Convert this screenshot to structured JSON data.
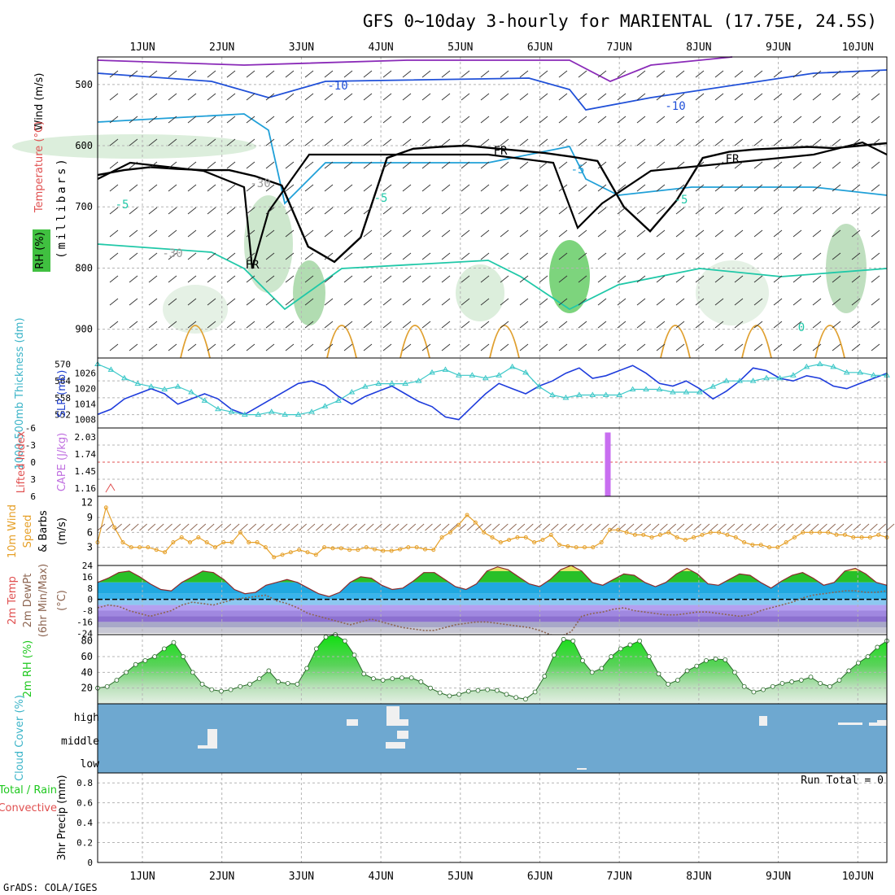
{
  "title": "GFS 0~10day 3-hourly for MARIENTAL (17.75E, 24.5S)",
  "footer": "GrADS: COLA/IGES",
  "date_labels": [
    "1JUN",
    "2JUN",
    "3JUN",
    "4JUN",
    "5JUN",
    "6JUN",
    "7JUN",
    "8JUN",
    "9JUN",
    "10JUN"
  ],
  "colors": {
    "grid": "#b4b4b4",
    "freeze": "#000000",
    "slp": "#1e3cdc",
    "thickness": "#3cc8c8",
    "cape": "#c86ef0",
    "li": "#e63c3c",
    "wind10": "#e6a028",
    "temp": "#8c6450",
    "cloud": "#6ea8d0",
    "rh": "#1ec81e",
    "upper_green": "#3cbe3c"
  },
  "chart_data": [
    {
      "type": "contour",
      "panel": "upper",
      "ylabel_parts": [
        "Wind (m/s)",
        "Temperature (°C)",
        "RH (%)",
        "(millibars)"
      ],
      "ylabel_wind": "Wind (m/s)",
      "ylabel_temp": "Temperature (°C)",
      "ylabel_rh": "RH (%)",
      "ylabel_mb": "(millibars)",
      "y_ticks": [
        "500",
        "600",
        "700",
        "800",
        "900"
      ],
      "contour_labels": [
        "-10",
        "-10",
        "-5",
        "-5",
        "-5",
        "-5",
        "-30",
        "-30",
        "FR",
        "FR",
        "FR",
        "0"
      ],
      "freeze_line_mb": [
        648,
        640,
        635,
        638,
        640,
        640,
        650,
        665,
        765,
        790,
        750,
        620,
        605,
        602,
        600,
        604,
        608,
        612,
        618,
        625,
        700,
        740,
        690,
        620,
        610,
        606,
        604,
        602,
        604,
        600,
        596
      ]
    },
    {
      "type": "line",
      "panel": "thickness_slp",
      "ylabel_left": "1000-500mb Thickness (dm)",
      "ylabel_right": "SLP (mb)",
      "thickness_ticks": [
        "570",
        "564",
        "558",
        "552"
      ],
      "slp_ticks": [
        "1026",
        "1020",
        "1014",
        "1008"
      ],
      "series": [
        {
          "name": "SLP (mb)",
          "values": [
            1010,
            1012,
            1016,
            1018,
            1020,
            1018,
            1014,
            1016,
            1018,
            1016,
            1012,
            1010,
            1013,
            1016,
            1019,
            1022,
            1023,
            1021,
            1017,
            1014,
            1017,
            1019,
            1021,
            1018,
            1015,
            1013,
            1009,
            1008,
            1013,
            1018,
            1022,
            1020,
            1018,
            1021,
            1023,
            1026,
            1028,
            1024,
            1025,
            1027,
            1029,
            1026,
            1022,
            1021,
            1023,
            1020,
            1016,
            1019,
            1023,
            1028,
            1027,
            1024,
            1023,
            1025,
            1024,
            1021,
            1020,
            1022,
            1024,
            1026
          ]
        },
        {
          "name": "1000-500mb Thickness (dm)",
          "values": [
            570,
            568,
            565,
            563,
            562,
            561,
            562,
            560,
            557,
            554,
            553,
            552,
            552,
            553,
            552,
            552,
            553,
            555,
            557,
            560,
            562,
            563,
            563,
            563,
            564,
            567,
            568,
            566,
            566,
            565,
            566,
            569,
            567,
            562,
            559,
            558,
            559,
            559,
            559,
            559,
            561,
            561,
            561,
            560,
            560,
            560,
            562,
            564,
            564,
            564,
            565,
            565,
            566,
            569,
            570,
            569,
            567,
            567,
            566,
            566
          ]
        }
      ]
    },
    {
      "type": "bar",
      "panel": "cape_li",
      "ylabel_left": "Lifted Index",
      "ylabel_right": "CAPE (J/kg)",
      "li_ticks": [
        "-6",
        "-3",
        "0",
        "3",
        "6"
      ],
      "cape_ticks": [
        "2.03",
        "1.74",
        "1.45",
        "1.16"
      ],
      "cape_bars": [
        {
          "day": 5.86,
          "value": 2.03
        }
      ]
    },
    {
      "type": "line",
      "panel": "wind10m",
      "ylabel_parts": [
        "10m Wind",
        "Speed",
        "& Barbs",
        "(m/s)"
      ],
      "y_ticks": [
        "12",
        "9",
        "6",
        "3"
      ],
      "series": [
        {
          "name": "10m Wind Speed",
          "values": [
            4,
            11,
            7,
            4,
            3,
            3,
            3,
            2.5,
            2,
            4,
            5,
            4,
            5,
            4,
            3,
            4,
            4,
            6,
            4,
            4,
            3,
            1,
            1.5,
            2,
            2.5,
            2,
            1.5,
            3,
            2.8,
            2.8,
            2.5,
            2.5,
            3,
            2.6,
            2.3,
            2.3,
            2.6,
            3,
            3,
            2.6,
            2.5,
            5,
            6,
            7.5,
            9.5,
            8,
            6,
            5,
            4,
            4.5,
            5,
            5,
            4,
            4.5,
            5.5,
            3.5,
            3.2,
            3,
            3,
            3,
            4,
            6.5,
            6.5,
            6,
            5.5,
            5.5,
            5,
            5.5,
            6,
            5,
            4.5,
            5,
            5.5,
            6,
            6,
            5.5,
            5,
            4,
            3.5,
            3.5,
            3,
            3,
            4,
            5,
            6,
            6,
            6,
            6,
            5.5,
            5.5,
            5,
            5,
            5,
            5.5,
            5
          ]
        }
      ]
    },
    {
      "type": "area",
      "panel": "temp2m",
      "ylabel_parts": [
        "2m Temp",
        "2m DewPt",
        "(6hr Min/Max)",
        "(°C)"
      ],
      "y_ticks": [
        "24",
        "16",
        "8",
        "0",
        "-8",
        "-16",
        "-24"
      ],
      "series": [
        {
          "name": "2m Temp",
          "values": [
            12,
            15,
            19,
            20,
            16,
            11,
            7,
            6,
            12,
            16,
            20,
            19,
            14,
            7,
            4,
            5,
            10,
            12,
            14,
            12,
            8,
            4,
            2,
            5,
            12,
            16,
            15,
            10,
            7,
            8,
            13,
            19,
            19,
            14,
            9,
            7,
            11,
            20,
            23,
            21,
            16,
            11,
            9,
            14,
            21,
            24,
            20,
            12,
            10,
            14,
            18,
            17,
            12,
            9,
            12,
            18,
            22,
            18,
            11,
            10,
            14,
            18,
            17,
            12,
            8,
            13,
            17,
            19,
            15,
            10,
            12,
            20,
            22,
            18,
            12,
            10
          ]
        },
        {
          "name": "2m DewPt",
          "values": [
            -6,
            -4,
            -5,
            -8,
            -10,
            -12,
            -10,
            -8,
            -4,
            -2,
            -3,
            -4,
            -2,
            0,
            1,
            2,
            3,
            -1,
            -3,
            -6,
            -10,
            -12,
            -14,
            -16,
            -18,
            -16,
            -14,
            -16,
            -18,
            -20,
            -21,
            -22,
            -22,
            -20,
            -18,
            -17,
            -16,
            -16,
            -17,
            -18,
            -19,
            -20,
            -22,
            -25,
            -26,
            -23,
            -12,
            -10,
            -9,
            -7,
            -6,
            -8,
            -9,
            -10,
            -11,
            -11,
            -10,
            -9,
            -9,
            -10,
            -11,
            -12,
            -11,
            -8,
            -6,
            -4,
            -2,
            1,
            3,
            4,
            5,
            6,
            6,
            5,
            5,
            6
          ]
        }
      ]
    },
    {
      "type": "area",
      "panel": "rh2m",
      "ylabel": "2m RH (%)",
      "y_ticks": [
        "80",
        "60",
        "40",
        "20"
      ],
      "series": [
        {
          "name": "2m RH",
          "values": [
            20,
            22,
            30,
            40,
            50,
            55,
            60,
            70,
            78,
            60,
            40,
            25,
            18,
            16,
            18,
            22,
            25,
            32,
            42,
            28,
            26,
            25,
            45,
            70,
            85,
            88,
            80,
            62,
            38,
            32,
            30,
            32,
            33,
            33,
            28,
            20,
            14,
            10,
            12,
            16,
            17,
            18,
            17,
            12,
            8,
            6,
            15,
            35,
            62,
            82,
            80,
            55,
            40,
            45,
            60,
            70,
            75,
            80,
            60,
            38,
            25,
            30,
            42,
            48,
            55,
            57,
            56,
            40,
            22,
            15,
            18,
            22,
            26,
            28,
            30,
            34,
            26,
            22,
            30,
            42,
            52,
            60,
            72,
            80
          ]
        }
      ]
    },
    {
      "type": "heatmap",
      "panel": "cloud",
      "ylabel": "Cloud Cover (%)",
      "levels": [
        "high",
        "middle",
        "low"
      ]
    },
    {
      "type": "bar",
      "panel": "precip",
      "ylabel_parts": [
        "Total / Rain",
        "Convective",
        "3hr Precip (mm)"
      ],
      "y_ticks": [
        "0.8",
        "0.6",
        "0.4",
        "0.2",
        "0"
      ],
      "run_total": "Run Total = 0",
      "ylim": [
        0,
        0.9
      ],
      "values": []
    }
  ]
}
